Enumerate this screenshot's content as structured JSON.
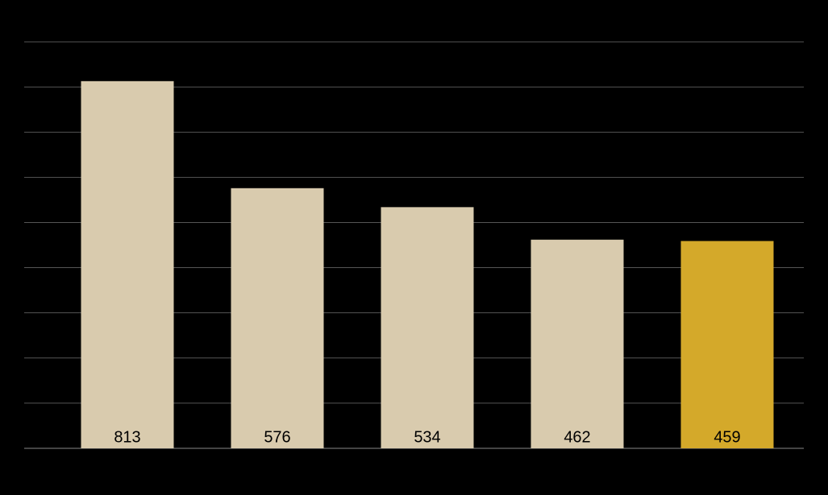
{
  "chart_data": {
    "type": "bar",
    "values": [
      813,
      576,
      534,
      462,
      459
    ],
    "colors": [
      "#d9cbae",
      "#d9cbae",
      "#d9cbae",
      "#d9cbae",
      "#d4a92a"
    ],
    "ylim": [
      0,
      900
    ],
    "yticks": [
      0,
      100,
      200,
      300,
      400,
      500,
      600,
      700,
      800,
      900
    ],
    "grid": true
  }
}
